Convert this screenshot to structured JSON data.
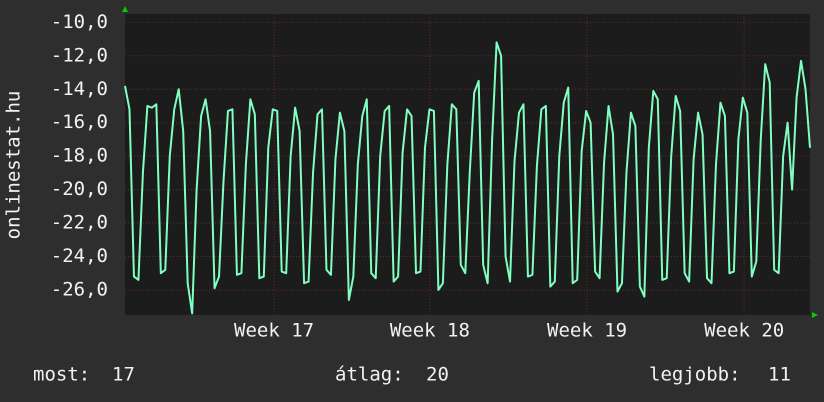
{
  "chart_data": {
    "type": "line",
    "y_label": "onlinestat.hu",
    "color": "#80ffc0",
    "grid": true,
    "xlim": [
      0,
      153
    ],
    "xticks": [
      {
        "value": 33.3,
        "label": "Week 17"
      },
      {
        "value": 68.1,
        "label": "Week 18"
      },
      {
        "value": 103.2,
        "label": "Week 19"
      },
      {
        "value": 138.3,
        "label": "Week 20"
      }
    ],
    "ylim": [
      -27.5,
      -9.5
    ],
    "yticks": [
      {
        "value": -10,
        "label": "-10,0"
      },
      {
        "value": -12,
        "label": "-12,0"
      },
      {
        "value": -14,
        "label": "-14,0"
      },
      {
        "value": -16,
        "label": "-16,0"
      },
      {
        "value": -18,
        "label": "-18,0"
      },
      {
        "value": -20,
        "label": "-20,0"
      },
      {
        "value": -22,
        "label": "-22,0"
      },
      {
        "value": -24,
        "label": "-24,0"
      },
      {
        "value": -26,
        "label": "-26,0"
      }
    ],
    "values": [
      -13.8,
      -15.2,
      -25.2,
      -25.4,
      -19.0,
      -15.0,
      -15.1,
      -14.9,
      -25.0,
      -24.8,
      -18.0,
      -15.2,
      -14.0,
      -16.5,
      -25.6,
      -27.4,
      -20.0,
      -15.6,
      -14.6,
      -16.5,
      -25.9,
      -25.2,
      -19.5,
      -15.3,
      -15.2,
      -25.1,
      -25.0,
      -18.5,
      -14.6,
      -15.5,
      -25.3,
      -25.2,
      -17.5,
      -15.2,
      -15.3,
      -24.9,
      -25.0,
      -18.0,
      -15.1,
      -16.5,
      -25.6,
      -25.5,
      -19.0,
      -15.5,
      -15.2,
      -24.8,
      -25.1,
      -18.2,
      -15.4,
      -16.5,
      -26.6,
      -25.2,
      -18.5,
      -15.6,
      -14.6,
      -25.0,
      -25.3,
      -18.0,
      -15.3,
      -15.0,
      -25.5,
      -25.2,
      -17.8,
      -15.2,
      -15.6,
      -25.0,
      -24.9,
      -17.5,
      -15.2,
      -15.3,
      -26.0,
      -25.6,
      -18.5,
      -14.9,
      -15.2,
      -24.5,
      -25.0,
      -19.0,
      -14.2,
      -13.5,
      -24.5,
      -25.6,
      -17.0,
      -11.2,
      -12.0,
      -24.0,
      -25.5,
      -18.3,
      -15.4,
      -14.9,
      -25.2,
      -25.1,
      -18.6,
      -15.2,
      -15.0,
      -25.8,
      -25.5,
      -18.0,
      -14.8,
      -13.9,
      -25.6,
      -25.4,
      -17.7,
      -15.3,
      -16.0,
      -24.9,
      -25.3,
      -18.4,
      -15.0,
      -16.7,
      -26.1,
      -25.6,
      -19.0,
      -15.4,
      -16.2,
      -25.8,
      -26.4,
      -17.5,
      -14.1,
      -14.6,
      -25.4,
      -25.3,
      -18.0,
      -14.4,
      -15.3,
      -25.0,
      -25.5,
      -18.2,
      -15.4,
      -16.7,
      -25.3,
      -25.6,
      -18.5,
      -14.8,
      -15.6,
      -25.0,
      -24.9,
      -17.0,
      -14.5,
      -15.4,
      -25.2,
      -24.3,
      -17.0,
      -12.5,
      -13.6,
      -24.8,
      -25.0,
      -18.0,
      -16.0,
      -20.0,
      -14.5,
      -12.3,
      -14.0,
      -17.5
    ]
  },
  "footer": {
    "current": {
      "label": "most:",
      "value": 17
    },
    "average": {
      "label": "átlag:",
      "value": 20
    },
    "best": {
      "label": "legjobb:",
      "value": 11
    }
  }
}
